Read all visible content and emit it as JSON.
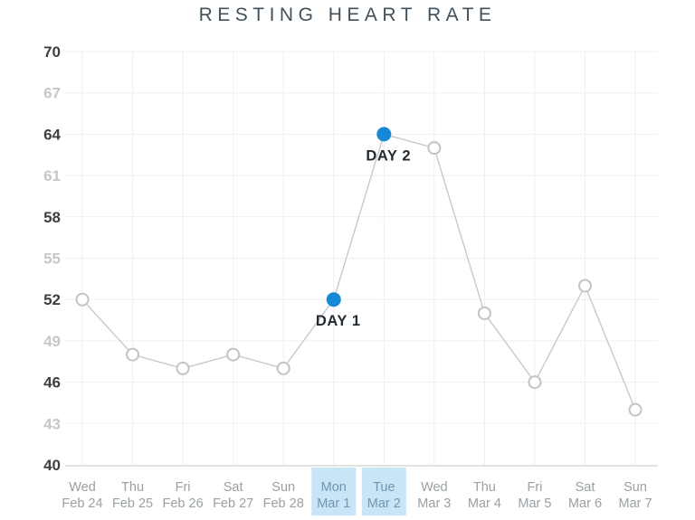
{
  "chart_data": {
    "type": "line",
    "title": "RESTING HEART RATE",
    "xlabel": "",
    "ylabel": "",
    "x_labels": [
      {
        "day": "Wed",
        "date": "Feb 24"
      },
      {
        "day": "Thu",
        "date": "Feb 25"
      },
      {
        "day": "Fri",
        "date": "Feb 26"
      },
      {
        "day": "Sat",
        "date": "Feb 27"
      },
      {
        "day": "Sun",
        "date": "Feb 28"
      },
      {
        "day": "Mon",
        "date": "Mar 1"
      },
      {
        "day": "Tue",
        "date": "Mar 2"
      },
      {
        "day": "Wed",
        "date": "Mar 3"
      },
      {
        "day": "Thu",
        "date": "Mar 4"
      },
      {
        "day": "Fri",
        "date": "Mar 5"
      },
      {
        "day": "Sat",
        "date": "Mar 6"
      },
      {
        "day": "Sun",
        "date": "Mar 7"
      }
    ],
    "series": [
      {
        "name": "Resting heart rate (bpm)",
        "values": [
          52,
          48,
          47,
          48,
          47,
          52,
          64,
          63,
          51,
          46,
          53,
          44
        ]
      }
    ],
    "highlighted_indices": [
      5,
      6
    ],
    "annotations": [
      {
        "index": 5,
        "label": "DAY 1"
      },
      {
        "index": 6,
        "label": "DAY 2"
      }
    ],
    "y_ticks": [
      40,
      43,
      46,
      49,
      52,
      55,
      58,
      61,
      64,
      67,
      70
    ],
    "y_ticks_emphasized": [
      40,
      46,
      52,
      58,
      64,
      70
    ],
    "ylim": [
      40,
      70
    ],
    "grid": true,
    "legend_position": "none",
    "colors": {
      "accent_blue": "#1688d6",
      "highlight_bg": "#c9e4f6",
      "highlight_text": "#6f97ad",
      "line": "#c9c9c9",
      "marker_stroke": "#c3c3c3",
      "marker_fill": "#ffffff",
      "grid": "#efefef",
      "axis": "#d8d8d8",
      "ytick_dark": "#3f3f3f",
      "ytick_light": "#c7c7c7",
      "xtick": "#9aa0a4",
      "title": "#42505a",
      "annotation": "#222b33"
    }
  }
}
